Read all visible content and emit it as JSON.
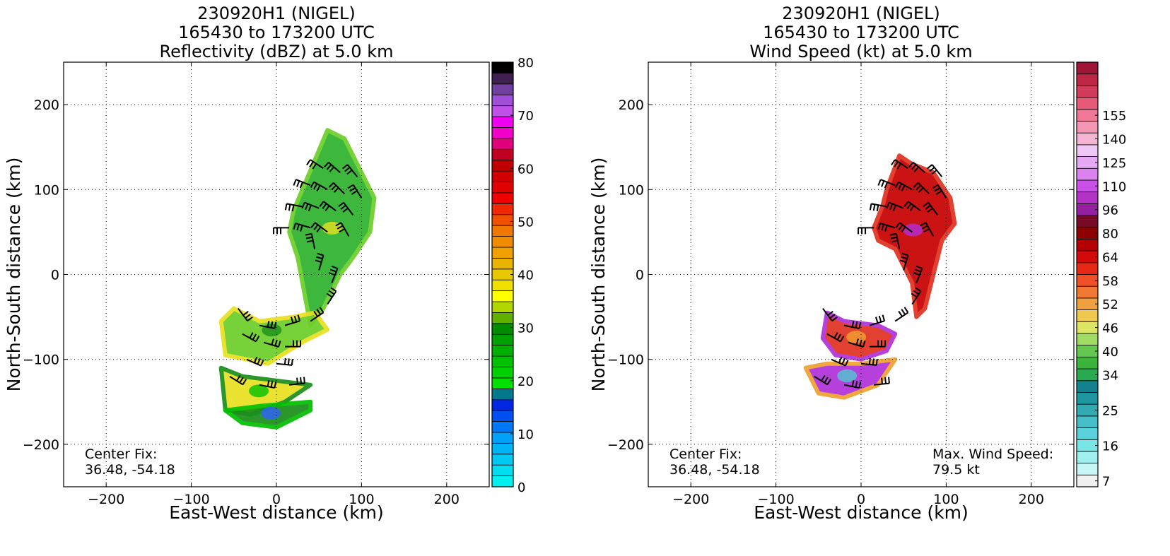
{
  "chart_data": [
    {
      "type": "heatmap",
      "title": [
        "230920H1 (NIGEL)",
        "165430 to 173200 UTC",
        "Reflectivity (dBZ) at 5.0 km"
      ],
      "xlabel": "East-West distance (km)",
      "ylabel": "North-South distance (km)",
      "xlim": [
        -250,
        250
      ],
      "ylim": [
        -250,
        250
      ],
      "xticks": [
        -200,
        -100,
        0,
        100,
        200
      ],
      "yticks": [
        -200,
        -100,
        0,
        100,
        200
      ],
      "xtick_labels": [
        "−200",
        "−100",
        "0",
        "100",
        "200"
      ],
      "ytick_labels": [
        "−200",
        "−100",
        "0",
        "100",
        "200"
      ],
      "grid": true,
      "annotations": [
        {
          "text": [
            "Center Fix:",
            "36.48, -54.18"
          ],
          "position": "bottom-left"
        }
      ],
      "colorbar": {
        "min": 0,
        "max": 80,
        "tick_values": [
          0,
          10,
          20,
          30,
          40,
          50,
          60,
          70,
          80
        ],
        "tick_labels": [
          "0",
          "10",
          "20",
          "30",
          "40",
          "50",
          "60",
          "70",
          "80"
        ],
        "colors": [
          "#00f0f0",
          "#00dcf0",
          "#00c8f5",
          "#00b4f5",
          "#00a0f8",
          "#0078f5",
          "#0050f0",
          "#0028e0",
          "#00788c",
          "#00e000",
          "#00d000",
          "#00c000",
          "#00b000",
          "#00a000",
          "#008c00",
          "#60b000",
          "#b0d800",
          "#ffff00",
          "#f0e000",
          "#e8c800",
          "#e8b400",
          "#f0a000",
          "#f08c00",
          "#f07800",
          "#f05000",
          "#f02800",
          "#f00000",
          "#e00000",
          "#d00000",
          "#c00000",
          "#c00020",
          "#e0007a",
          "#f000c8",
          "#f000f0",
          "#c050e8",
          "#a050d8",
          "#7040a0",
          "#402050",
          "#000000"
        ]
      },
      "echo_regions": [
        {
          "x": [
            20,
            60,
            80,
            100,
            115,
            110,
            90,
            75,
            55,
            40,
            25,
            15
          ],
          "y": [
            75,
            170,
            160,
            120,
            90,
            50,
            20,
            0,
            -40,
            -60,
            20,
            50
          ]
        },
        {
          "x": [
            -65,
            -50,
            -20,
            20,
            45,
            60,
            30,
            -10,
            -60
          ],
          "y": [
            -55,
            -40,
            -55,
            -50,
            -45,
            -65,
            -80,
            -105,
            -95
          ]
        },
        {
          "x": [
            -65,
            -40,
            0,
            40,
            10,
            -30,
            -60
          ],
          "y": [
            -110,
            -120,
            -125,
            -130,
            -150,
            -165,
            -160
          ]
        },
        {
          "x": [
            -60,
            -20,
            40,
            40,
            0,
            -40
          ],
          "y": [
            -160,
            -155,
            -150,
            -160,
            -180,
            -175
          ]
        }
      ],
      "wind_barbs": [
        {
          "x": 55,
          "y": 125,
          "u": 18,
          "v": -12
        },
        {
          "x": 75,
          "y": 120,
          "u": 16,
          "v": -14
        },
        {
          "x": 95,
          "y": 115,
          "u": 12,
          "v": -15
        },
        {
          "x": 40,
          "y": 105,
          "u": 20,
          "v": -8
        },
        {
          "x": 60,
          "y": 100,
          "u": 18,
          "v": -10
        },
        {
          "x": 80,
          "y": 95,
          "u": 14,
          "v": -14
        },
        {
          "x": 100,
          "y": 90,
          "u": 10,
          "v": -16
        },
        {
          "x": 30,
          "y": 80,
          "u": 22,
          "v": -4
        },
        {
          "x": 50,
          "y": 78,
          "u": 20,
          "v": -8
        },
        {
          "x": 70,
          "y": 75,
          "u": 16,
          "v": -12
        },
        {
          "x": 90,
          "y": 70,
          "u": 12,
          "v": -16
        },
        {
          "x": 15,
          "y": 55,
          "u": 22,
          "v": 0
        },
        {
          "x": 40,
          "y": 55,
          "u": 20,
          "v": -6
        },
        {
          "x": 60,
          "y": 50,
          "u": 16,
          "v": -12
        },
        {
          "x": 85,
          "y": 45,
          "u": 10,
          "v": -18
        },
        {
          "x": 45,
          "y": 30,
          "u": 4,
          "v": -20
        },
        {
          "x": 50,
          "y": 5,
          "u": -6,
          "v": -20
        },
        {
          "x": 65,
          "y": -10,
          "u": -8,
          "v": -20
        },
        {
          "x": 60,
          "y": -35,
          "u": -12,
          "v": -18
        },
        {
          "x": 40,
          "y": -55,
          "u": -18,
          "v": -12
        },
        {
          "x": 10,
          "y": -60,
          "u": -20,
          "v": -6
        },
        {
          "x": -20,
          "y": -60,
          "u": -20,
          "v": 4
        },
        {
          "x": -45,
          "y": -40,
          "u": -12,
          "v": 16
        },
        {
          "x": -40,
          "y": -70,
          "u": -18,
          "v": 10
        },
        {
          "x": -15,
          "y": -80,
          "u": -20,
          "v": 6
        },
        {
          "x": 10,
          "y": -85,
          "u": -20,
          "v": 0
        },
        {
          "x": -35,
          "y": -100,
          "u": -18,
          "v": 8
        },
        {
          "x": 0,
          "y": -105,
          "u": -20,
          "v": 2
        },
        {
          "x": -55,
          "y": -120,
          "u": -16,
          "v": 10
        },
        {
          "x": -20,
          "y": -130,
          "u": -20,
          "v": 4
        },
        {
          "x": 15,
          "y": -130,
          "u": -20,
          "v": -2
        }
      ]
    },
    {
      "type": "heatmap",
      "title": [
        "230920H1 (NIGEL)",
        "165430 to 173200 UTC",
        "Wind Speed (kt) at 5.0 km"
      ],
      "xlabel": "East-West distance (km)",
      "ylabel": "North-South distance (km)",
      "xlim": [
        -250,
        250
      ],
      "ylim": [
        -250,
        250
      ],
      "xticks": [
        -200,
        -100,
        0,
        100,
        200
      ],
      "yticks": [
        -200,
        -100,
        0,
        100,
        200
      ],
      "xtick_labels": [
        "−200",
        "−100",
        "0",
        "100",
        "200"
      ],
      "ytick_labels": [
        "−200",
        "−100",
        "0",
        "100",
        "200"
      ],
      "grid": true,
      "annotations": [
        {
          "text": [
            "Center Fix:",
            "36.48, -54.18"
          ],
          "position": "bottom-left"
        },
        {
          "text": [
            "Max. Wind Speed:",
            "79.5 kt"
          ],
          "position": "bottom-right"
        }
      ],
      "colorbar": {
        "tick_labels": [
          "7",
          "16",
          "25",
          "34",
          "40",
          "46",
          "52",
          "58",
          "64",
          "80",
          "96",
          "110",
          "125",
          "140",
          "155"
        ],
        "tick_levels": [
          0,
          3,
          6,
          9,
          11,
          13,
          15,
          17,
          19,
          21,
          23,
          25,
          27,
          29,
          31
        ],
        "colors": [
          "#f0f0f0",
          "#c8f5f5",
          "#a0f0f0",
          "#78e6e6",
          "#5ad2dc",
          "#46bec8",
          "#32aab4",
          "#1e96a0",
          "#14828c",
          "#28aa50",
          "#3cb43c",
          "#64c850",
          "#a0dc64",
          "#dce664",
          "#f0c850",
          "#f0a03c",
          "#f07832",
          "#f05028",
          "#e62814",
          "#d20a0a",
          "#b40000",
          "#8c0000",
          "#780a28",
          "#961ea0",
          "#b432c8",
          "#c850e6",
          "#dc82f0",
          "#e6aaf5",
          "#f0c8f5",
          "#f5b4d2",
          "#f596b4",
          "#f07896",
          "#e65a78",
          "#d23c5a",
          "#be2846",
          "#a01437"
        ]
      },
      "wind_regions": [
        {
          "x": [
            30,
            45,
            60,
            85,
            105,
            110,
            95,
            85,
            75,
            65,
            60,
            40,
            20,
            15,
            25
          ],
          "y": [
            100,
            140,
            130,
            120,
            90,
            60,
            40,
            0,
            -40,
            -50,
            -10,
            30,
            40,
            55,
            80
          ]
        },
        {
          "x": [
            -40,
            -20,
            20,
            40,
            30,
            0,
            -30,
            -45
          ],
          "y": [
            -45,
            -55,
            -60,
            -70,
            -90,
            -100,
            -95,
            -75
          ]
        },
        {
          "x": [
            -65,
            -40,
            0,
            40,
            20,
            -20,
            -50
          ],
          "y": [
            -110,
            -105,
            -105,
            -100,
            -130,
            -145,
            -140
          ]
        }
      ],
      "wind_barbs": [
        {
          "x": 55,
          "y": 125,
          "u": 18,
          "v": -12
        },
        {
          "x": 75,
          "y": 120,
          "u": 16,
          "v": -14
        },
        {
          "x": 95,
          "y": 115,
          "u": 12,
          "v": -15
        },
        {
          "x": 40,
          "y": 105,
          "u": 20,
          "v": -8
        },
        {
          "x": 60,
          "y": 100,
          "u": 18,
          "v": -10
        },
        {
          "x": 80,
          "y": 95,
          "u": 14,
          "v": -14
        },
        {
          "x": 100,
          "y": 90,
          "u": 10,
          "v": -16
        },
        {
          "x": 30,
          "y": 80,
          "u": 22,
          "v": -4
        },
        {
          "x": 50,
          "y": 78,
          "u": 20,
          "v": -8
        },
        {
          "x": 70,
          "y": 75,
          "u": 16,
          "v": -12
        },
        {
          "x": 90,
          "y": 70,
          "u": 12,
          "v": -16
        },
        {
          "x": 15,
          "y": 55,
          "u": 22,
          "v": 0
        },
        {
          "x": 40,
          "y": 55,
          "u": 20,
          "v": -6
        },
        {
          "x": 60,
          "y": 50,
          "u": 16,
          "v": -12
        },
        {
          "x": 85,
          "y": 45,
          "u": 10,
          "v": -18
        },
        {
          "x": 45,
          "y": 30,
          "u": 4,
          "v": -20
        },
        {
          "x": 50,
          "y": 5,
          "u": -6,
          "v": -20
        },
        {
          "x": 65,
          "y": -10,
          "u": -8,
          "v": -20
        },
        {
          "x": 60,
          "y": -35,
          "u": -12,
          "v": -18
        },
        {
          "x": 40,
          "y": -55,
          "u": -18,
          "v": -12
        },
        {
          "x": 10,
          "y": -60,
          "u": -20,
          "v": -6
        },
        {
          "x": -20,
          "y": -60,
          "u": -20,
          "v": 4
        },
        {
          "x": -45,
          "y": -40,
          "u": -12,
          "v": 16
        },
        {
          "x": -40,
          "y": -70,
          "u": -18,
          "v": 10
        },
        {
          "x": -15,
          "y": -80,
          "u": -20,
          "v": 6
        },
        {
          "x": 10,
          "y": -85,
          "u": -20,
          "v": 0
        },
        {
          "x": -35,
          "y": -100,
          "u": -18,
          "v": 8
        },
        {
          "x": 0,
          "y": -105,
          "u": -20,
          "v": 2
        },
        {
          "x": -55,
          "y": -120,
          "u": -16,
          "v": 10
        },
        {
          "x": -20,
          "y": -130,
          "u": -20,
          "v": 4
        },
        {
          "x": 15,
          "y": -130,
          "u": -20,
          "v": -2
        }
      ]
    }
  ]
}
